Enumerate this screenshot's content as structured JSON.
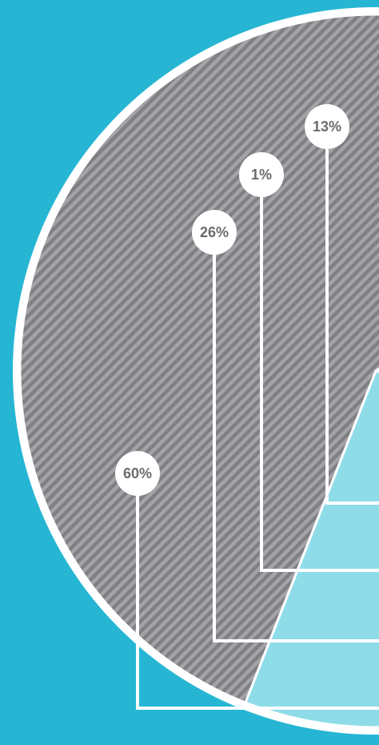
{
  "chart_data": {
    "type": "pie",
    "title": "",
    "slices": [
      {
        "label": "13%",
        "value": 13,
        "color": "#26b6d3",
        "pattern": "solid"
      },
      {
        "label": "1%",
        "value": 1,
        "color": "#6b6b6f",
        "pattern": "solid"
      },
      {
        "label": "26%",
        "value": 26,
        "color": "#8fdce9",
        "pattern": "solid"
      },
      {
        "label": "60%",
        "value": 60,
        "color": "#7f7f84",
        "pattern": "diagonal-stripes"
      }
    ],
    "legend": "none",
    "colors": {
      "background": "#26b6d3",
      "outline": "#ffffff",
      "label_text": "#6b6b6f"
    }
  }
}
